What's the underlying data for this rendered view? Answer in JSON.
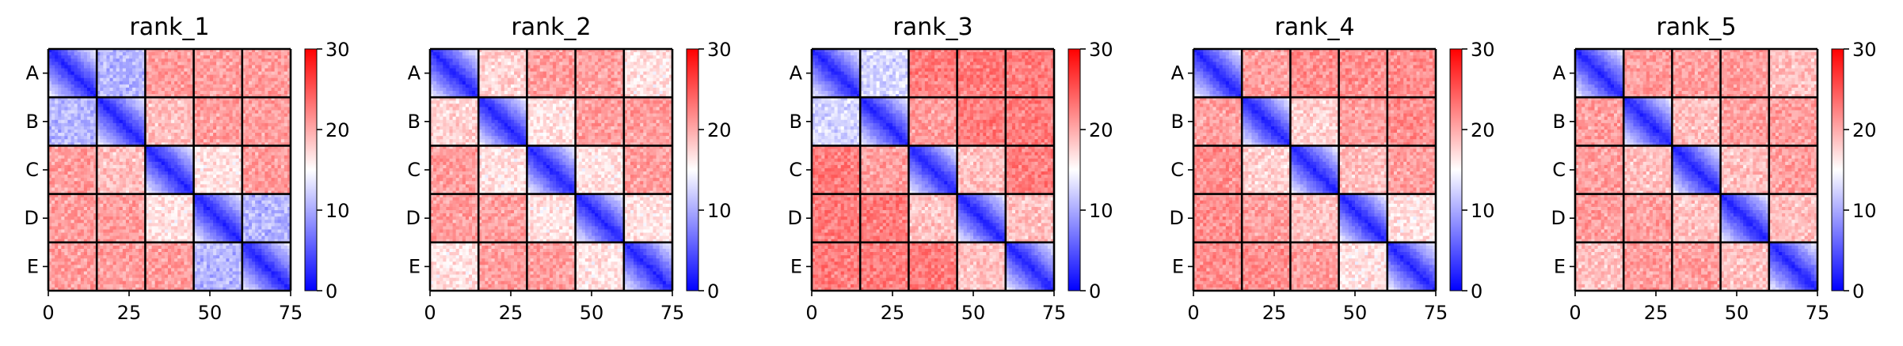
{
  "chart_data": [
    {
      "type": "heatmap",
      "title": "rank_1",
      "x_ticks": [
        "0",
        "25",
        "50",
        "75"
      ],
      "x_tick_values": [
        0,
        25,
        50,
        75
      ],
      "y_ticks": [
        "A",
        "B",
        "C",
        "D",
        "E"
      ],
      "grid_size": 75,
      "block_size": 15,
      "block_grid": [
        [
          2,
          11,
          21,
          21,
          21
        ],
        [
          11,
          2,
          19,
          21,
          21
        ],
        [
          21,
          19,
          2,
          17,
          21
        ],
        [
          21,
          21,
          17,
          2,
          11
        ],
        [
          21,
          21,
          21,
          11,
          2
        ]
      ],
      "colorbar": {
        "min": 0,
        "max": 30,
        "ticks": [
          "0",
          "10",
          "20",
          "30"
        ],
        "tick_values": [
          0,
          10,
          20,
          30
        ]
      }
    },
    {
      "type": "heatmap",
      "title": "rank_2",
      "x_ticks": [
        "0",
        "25",
        "50",
        "75"
      ],
      "x_tick_values": [
        0,
        25,
        50,
        75
      ],
      "y_ticks": [
        "A",
        "B",
        "C",
        "D",
        "E"
      ],
      "grid_size": 75,
      "block_size": 15,
      "block_grid": [
        [
          2,
          18,
          21,
          21,
          17
        ],
        [
          18,
          2,
          17,
          21,
          21
        ],
        [
          21,
          17,
          2,
          17,
          21
        ],
        [
          21,
          21,
          17,
          2,
          17
        ],
        [
          17,
          21,
          21,
          17,
          2
        ]
      ],
      "colorbar": {
        "min": 0,
        "max": 30,
        "ticks": [
          "0",
          "10",
          "20",
          "30"
        ],
        "tick_values": [
          0,
          10,
          20,
          30
        ]
      }
    },
    {
      "type": "heatmap",
      "title": "rank_3",
      "x_ticks": [
        "0",
        "25",
        "50",
        "75"
      ],
      "x_tick_values": [
        0,
        25,
        50,
        75
      ],
      "y_ticks": [
        "A",
        "B",
        "C",
        "D",
        "E"
      ],
      "grid_size": 75,
      "block_size": 15,
      "block_grid": [
        [
          2,
          13,
          23,
          23,
          23
        ],
        [
          13,
          2,
          21,
          23,
          23
        ],
        [
          23,
          21,
          2,
          19,
          23
        ],
        [
          23,
          23,
          19,
          2,
          19
        ],
        [
          23,
          23,
          23,
          19,
          2
        ]
      ],
      "colorbar": {
        "min": 0,
        "max": 30,
        "ticks": [
          "0",
          "10",
          "20",
          "30"
        ],
        "tick_values": [
          0,
          10,
          20,
          30
        ]
      }
    },
    {
      "type": "heatmap",
      "title": "rank_4",
      "x_ticks": [
        "0",
        "25",
        "50",
        "75"
      ],
      "x_tick_values": [
        0,
        25,
        50,
        75
      ],
      "y_ticks": [
        "A",
        "B",
        "C",
        "D",
        "E"
      ],
      "grid_size": 75,
      "block_size": 15,
      "block_grid": [
        [
          2,
          21,
          22,
          22,
          22
        ],
        [
          21,
          2,
          18,
          21,
          22
        ],
        [
          22,
          18,
          2,
          19,
          21
        ],
        [
          22,
          21,
          19,
          2,
          17
        ],
        [
          22,
          22,
          21,
          17,
          2
        ]
      ],
      "colorbar": {
        "min": 0,
        "max": 30,
        "ticks": [
          "0",
          "10",
          "20",
          "30"
        ],
        "tick_values": [
          0,
          10,
          20,
          30
        ]
      }
    },
    {
      "type": "heatmap",
      "title": "rank_5",
      "x_ticks": [
        "0",
        "25",
        "50",
        "75"
      ],
      "x_tick_values": [
        0,
        25,
        50,
        75
      ],
      "y_ticks": [
        "A",
        "B",
        "C",
        "D",
        "E"
      ],
      "grid_size": 75,
      "block_size": 15,
      "block_grid": [
        [
          2,
          21,
          21,
          21,
          19
        ],
        [
          21,
          2,
          19,
          21,
          21
        ],
        [
          21,
          19,
          2,
          19,
          21
        ],
        [
          21,
          21,
          19,
          2,
          19
        ],
        [
          19,
          21,
          21,
          19,
          2
        ]
      ],
      "colorbar": {
        "min": 0,
        "max": 30,
        "ticks": [
          "0",
          "10",
          "20",
          "30"
        ],
        "tick_values": [
          0,
          10,
          20,
          30
        ]
      }
    }
  ],
  "colors": {
    "cmap_low": "#0000ff",
    "cmap_mid": "#ffffff",
    "cmap_high": "#ff0000",
    "block_border": "#000000",
    "axis": "#000000",
    "background": "#ffffff"
  }
}
